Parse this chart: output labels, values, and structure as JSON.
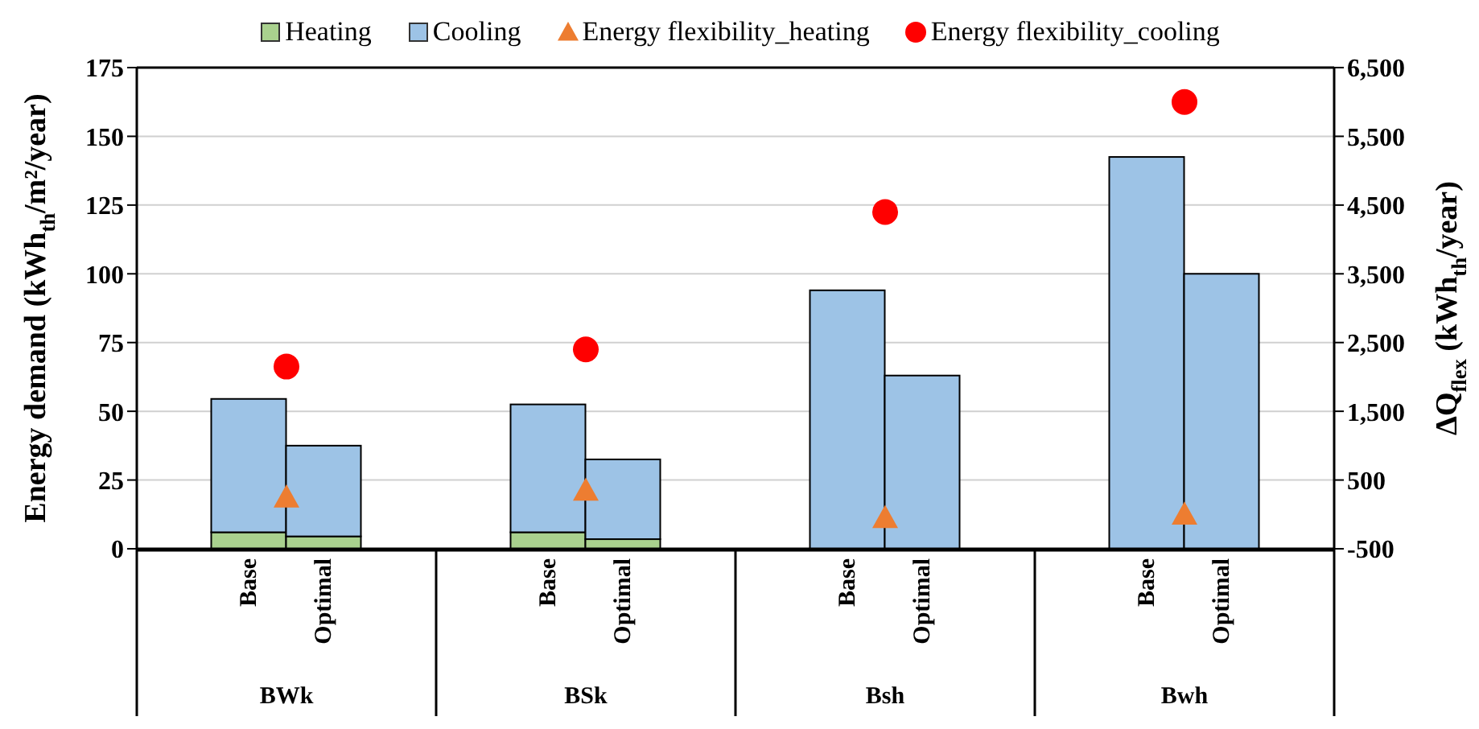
{
  "chart_data": {
    "type": "bar",
    "stacked": true,
    "categories": [
      "Base",
      "Optimal",
      "Base",
      "Optimal",
      "Base",
      "Optimal",
      "Base",
      "Optimal"
    ],
    "annotations": [
      "BWk",
      "BSk",
      "Bsh",
      "Bwh"
    ],
    "ylabel": "Energy demand (kWh$_{th}$/m²/year)",
    "y2label": "ΔQ$_{flex}$ (kWh$_{th}$/year)",
    "ylim": [
      0,
      175
    ],
    "yticks": [
      0,
      25,
      50,
      75,
      100,
      125,
      150,
      175
    ],
    "y2lim": [
      -500,
      6500
    ],
    "y2ticks": [
      {
        "value": -500,
        "label": "-500"
      },
      {
        "value": 500,
        "label": "500"
      },
      {
        "value": 1500,
        "label": "1,500"
      },
      {
        "value": 2500,
        "label": "2,500"
      },
      {
        "value": 3500,
        "label": "3,500"
      },
      {
        "value": 4500,
        "label": "4,500"
      },
      {
        "value": 5500,
        "label": "5,500"
      },
      {
        "value": 6500,
        "label": "6,500"
      }
    ],
    "grid": "y",
    "legend": "top",
    "series": [
      {
        "name": "Heating",
        "color": "#a9d18e",
        "values": [
          6,
          4.5,
          6,
          3.5,
          0,
          0,
          0,
          0
        ]
      },
      {
        "name": "Cooling",
        "color": "#9dc3e6",
        "values": [
          48.5,
          33,
          46.5,
          29,
          94,
          63,
          142.5,
          100
        ]
      },
      {
        "name": "Energy flexibility_heating",
        "type": "scatter",
        "axis": "y2",
        "marker": "triangle",
        "color": "#ed7d31",
        "values": [
          250,
          null,
          350,
          null,
          -50,
          null,
          0,
          null
        ]
      },
      {
        "name": "Energy flexibility_cooling",
        "type": "scatter",
        "axis": "y2",
        "marker": "circle",
        "color": "#ff0000",
        "values": [
          2150,
          null,
          2400,
          null,
          4400,
          null,
          6000,
          null
        ]
      }
    ]
  }
}
